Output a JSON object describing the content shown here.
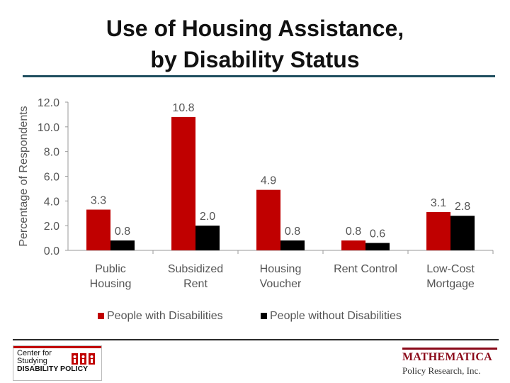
{
  "slide": {
    "title_line1": "Use of Housing Assistance,",
    "title_line2": "by Disability Status"
  },
  "chart_data": {
    "type": "bar",
    "ylabel": "Percentage of Respondents",
    "ylim": [
      0,
      12
    ],
    "yticks": [
      "0.0",
      "2.0",
      "4.0",
      "6.0",
      "8.0",
      "10.0",
      "12.0"
    ],
    "categories": [
      [
        "Public",
        "Housing"
      ],
      [
        "Subsidized",
        "Rent"
      ],
      [
        "Housing",
        "Voucher"
      ],
      [
        "Rent Control"
      ],
      [
        "Low-Cost",
        "Mortgage"
      ]
    ],
    "series": [
      {
        "name": "People with Disabilities",
        "color": "#c00000",
        "values": [
          3.3,
          10.8,
          4.9,
          0.8,
          3.1
        ]
      },
      {
        "name": "People without Disabilities",
        "color": "#000000",
        "values": [
          0.8,
          2.0,
          0.8,
          0.6,
          2.8
        ]
      }
    ],
    "legend_position": "bottom"
  },
  "footer": {
    "left_logo": {
      "line1": "Center for",
      "line2": "Studying",
      "line3": "DISABILITY POLICY"
    },
    "right_logo": {
      "line1": "MATHEMATICA",
      "line2": "Policy Research, Inc."
    }
  }
}
